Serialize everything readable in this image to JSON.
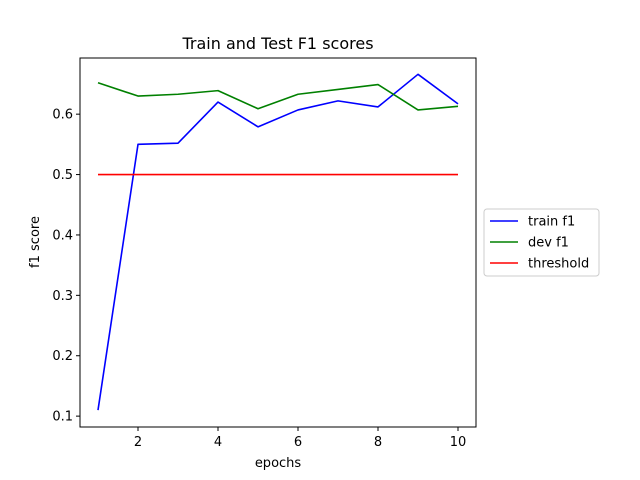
{
  "chart_data": {
    "type": "line",
    "title": "Train and Test F1 scores",
    "xlabel": "epochs",
    "ylabel": "f1 score",
    "xlim": [
      0.55,
      10.45
    ],
    "ylim": [
      0.082,
      0.693
    ],
    "xticks": [
      2,
      4,
      6,
      8,
      10
    ],
    "yticks": [
      0.1,
      0.2,
      0.3,
      0.4,
      0.5,
      0.6
    ],
    "grid": false,
    "legend_position": "center-right-outside",
    "x": [
      1,
      2,
      3,
      4,
      5,
      6,
      7,
      8,
      9,
      10
    ],
    "series": [
      {
        "name": "train f1",
        "color": "#0000ff",
        "values": [
          0.11,
          0.55,
          0.552,
          0.62,
          0.579,
          0.607,
          0.622,
          0.612,
          0.666,
          0.617
        ]
      },
      {
        "name": "dev f1",
        "color": "#008000",
        "values": [
          0.652,
          0.63,
          0.633,
          0.639,
          0.609,
          0.633,
          0.641,
          0.649,
          0.607,
          0.613
        ]
      },
      {
        "name": "threshold",
        "color": "#ff0000",
        "values": [
          0.5,
          0.5,
          0.5,
          0.5,
          0.5,
          0.5,
          0.5,
          0.5,
          0.5,
          0.5
        ]
      }
    ]
  }
}
